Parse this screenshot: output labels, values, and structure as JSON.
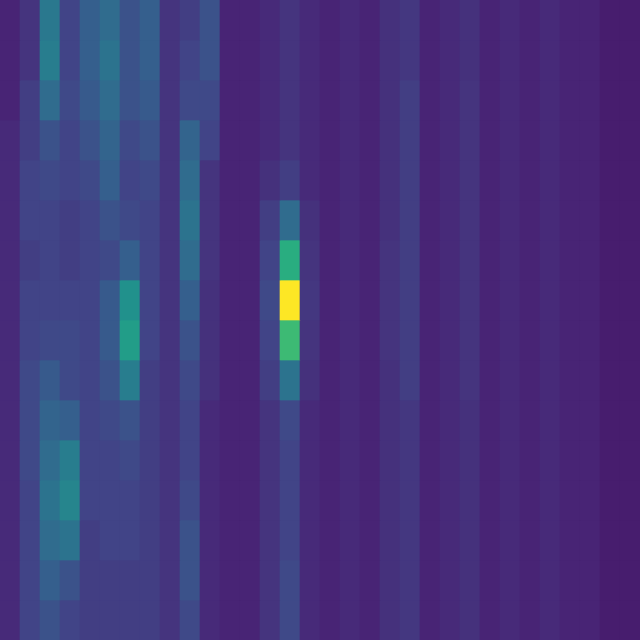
{
  "chart_data": {
    "type": "heatmap",
    "color": "viridis",
    "zlim": [
      0,
      1
    ],
    "tick_labels": false,
    "cells": [
      [
        0.1,
        0.15,
        0.4,
        0.2,
        0.3,
        0.35,
        0.25,
        0.3,
        0.15,
        0.18,
        0.25,
        0.1,
        0.1,
        0.12,
        0.15,
        0.12,
        0.1,
        0.12,
        0.1,
        0.14,
        0.16,
        0.1,
        0.12,
        0.14,
        0.1,
        0.12,
        0.1,
        0.12,
        0.1,
        0.1,
        0.08,
        0.08
      ],
      [
        0.1,
        0.15,
        0.42,
        0.2,
        0.3,
        0.38,
        0.25,
        0.3,
        0.15,
        0.2,
        0.25,
        0.1,
        0.1,
        0.12,
        0.15,
        0.12,
        0.1,
        0.12,
        0.1,
        0.14,
        0.16,
        0.1,
        0.12,
        0.14,
        0.1,
        0.12,
        0.1,
        0.12,
        0.1,
        0.1,
        0.08,
        0.08
      ],
      [
        0.1,
        0.18,
        0.35,
        0.22,
        0.28,
        0.35,
        0.25,
        0.28,
        0.15,
        0.22,
        0.22,
        0.1,
        0.1,
        0.12,
        0.15,
        0.12,
        0.1,
        0.12,
        0.1,
        0.14,
        0.18,
        0.1,
        0.12,
        0.15,
        0.1,
        0.12,
        0.1,
        0.12,
        0.1,
        0.1,
        0.08,
        0.08
      ],
      [
        0.12,
        0.18,
        0.25,
        0.2,
        0.25,
        0.32,
        0.22,
        0.25,
        0.15,
        0.32,
        0.2,
        0.1,
        0.1,
        0.12,
        0.15,
        0.12,
        0.1,
        0.12,
        0.1,
        0.14,
        0.18,
        0.1,
        0.12,
        0.15,
        0.1,
        0.12,
        0.1,
        0.12,
        0.1,
        0.1,
        0.08,
        0.08
      ],
      [
        0.12,
        0.2,
        0.22,
        0.2,
        0.22,
        0.3,
        0.2,
        0.22,
        0.15,
        0.35,
        0.15,
        0.1,
        0.1,
        0.14,
        0.18,
        0.12,
        0.1,
        0.12,
        0.1,
        0.14,
        0.18,
        0.1,
        0.12,
        0.15,
        0.1,
        0.12,
        0.1,
        0.12,
        0.1,
        0.1,
        0.08,
        0.08
      ],
      [
        0.12,
        0.2,
        0.2,
        0.18,
        0.2,
        0.25,
        0.22,
        0.2,
        0.15,
        0.38,
        0.15,
        0.1,
        0.1,
        0.18,
        0.35,
        0.14,
        0.1,
        0.12,
        0.1,
        0.14,
        0.18,
        0.1,
        0.12,
        0.15,
        0.1,
        0.12,
        0.1,
        0.12,
        0.1,
        0.1,
        0.08,
        0.08
      ],
      [
        0.12,
        0.18,
        0.2,
        0.18,
        0.2,
        0.22,
        0.3,
        0.2,
        0.15,
        0.35,
        0.15,
        0.1,
        0.1,
        0.2,
        0.62,
        0.15,
        0.1,
        0.12,
        0.1,
        0.15,
        0.18,
        0.1,
        0.12,
        0.15,
        0.1,
        0.12,
        0.1,
        0.12,
        0.1,
        0.1,
        0.08,
        0.08
      ],
      [
        0.12,
        0.2,
        0.2,
        0.2,
        0.2,
        0.28,
        0.5,
        0.2,
        0.15,
        0.3,
        0.14,
        0.1,
        0.1,
        0.22,
        1.0,
        0.16,
        0.1,
        0.12,
        0.1,
        0.15,
        0.18,
        0.1,
        0.12,
        0.15,
        0.1,
        0.12,
        0.1,
        0.12,
        0.1,
        0.1,
        0.08,
        0.08
      ],
      [
        0.12,
        0.2,
        0.22,
        0.22,
        0.2,
        0.28,
        0.55,
        0.2,
        0.15,
        0.25,
        0.14,
        0.1,
        0.1,
        0.2,
        0.68,
        0.15,
        0.1,
        0.12,
        0.1,
        0.15,
        0.18,
        0.1,
        0.12,
        0.15,
        0.1,
        0.12,
        0.1,
        0.12,
        0.1,
        0.1,
        0.08,
        0.08
      ],
      [
        0.12,
        0.22,
        0.28,
        0.22,
        0.2,
        0.25,
        0.42,
        0.18,
        0.15,
        0.22,
        0.14,
        0.1,
        0.1,
        0.18,
        0.38,
        0.14,
        0.1,
        0.12,
        0.1,
        0.14,
        0.18,
        0.1,
        0.12,
        0.15,
        0.1,
        0.12,
        0.1,
        0.12,
        0.1,
        0.1,
        0.08,
        0.08
      ],
      [
        0.12,
        0.22,
        0.32,
        0.3,
        0.2,
        0.22,
        0.25,
        0.18,
        0.15,
        0.2,
        0.12,
        0.1,
        0.1,
        0.15,
        0.22,
        0.12,
        0.1,
        0.12,
        0.1,
        0.14,
        0.16,
        0.1,
        0.12,
        0.14,
        0.1,
        0.12,
        0.1,
        0.12,
        0.1,
        0.1,
        0.08,
        0.08
      ],
      [
        0.12,
        0.22,
        0.35,
        0.42,
        0.2,
        0.2,
        0.22,
        0.18,
        0.15,
        0.2,
        0.12,
        0.1,
        0.1,
        0.15,
        0.2,
        0.12,
        0.1,
        0.12,
        0.1,
        0.14,
        0.16,
        0.1,
        0.12,
        0.14,
        0.1,
        0.12,
        0.1,
        0.12,
        0.1,
        0.1,
        0.08,
        0.08
      ],
      [
        0.12,
        0.2,
        0.38,
        0.45,
        0.2,
        0.2,
        0.2,
        0.18,
        0.15,
        0.22,
        0.12,
        0.1,
        0.1,
        0.15,
        0.2,
        0.12,
        0.1,
        0.12,
        0.1,
        0.14,
        0.16,
        0.1,
        0.12,
        0.14,
        0.1,
        0.12,
        0.1,
        0.12,
        0.1,
        0.1,
        0.08,
        0.08
      ],
      [
        0.12,
        0.2,
        0.35,
        0.38,
        0.18,
        0.2,
        0.2,
        0.18,
        0.15,
        0.25,
        0.12,
        0.1,
        0.1,
        0.15,
        0.2,
        0.12,
        0.1,
        0.12,
        0.1,
        0.14,
        0.16,
        0.1,
        0.12,
        0.14,
        0.1,
        0.12,
        0.1,
        0.12,
        0.1,
        0.1,
        0.08,
        0.08
      ],
      [
        0.12,
        0.2,
        0.3,
        0.25,
        0.18,
        0.18,
        0.18,
        0.18,
        0.15,
        0.25,
        0.12,
        0.1,
        0.1,
        0.15,
        0.22,
        0.12,
        0.1,
        0.12,
        0.1,
        0.14,
        0.16,
        0.1,
        0.12,
        0.14,
        0.1,
        0.12,
        0.1,
        0.12,
        0.1,
        0.1,
        0.08,
        0.08
      ],
      [
        0.12,
        0.2,
        0.25,
        0.2,
        0.18,
        0.18,
        0.18,
        0.18,
        0.15,
        0.22,
        0.12,
        0.1,
        0.1,
        0.15,
        0.22,
        0.12,
        0.1,
        0.12,
        0.1,
        0.14,
        0.16,
        0.1,
        0.12,
        0.14,
        0.1,
        0.12,
        0.1,
        0.12,
        0.1,
        0.1,
        0.08,
        0.08
      ]
    ]
  }
}
